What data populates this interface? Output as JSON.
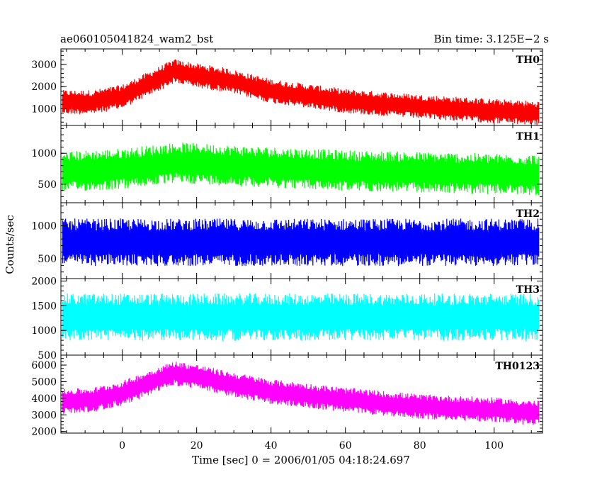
{
  "header": {
    "left_title": "ae060105041824_wam2_bst",
    "right_title": "Bin time: 3.125E−2 s"
  },
  "colors": {
    "TH0": "#ff0000",
    "TH1": "#00ff00",
    "TH2": "#0000ff",
    "TH3": "#00ffff",
    "TH0123": "#ff00ff"
  },
  "chart_data": {
    "type": "line",
    "xlabel": "Time [sec] 0 = 2006/01/05 04:18:24.697",
    "ylabel": "Counts/sec",
    "xlim": [
      -16.5,
      113
    ],
    "x_ticks": [
      0,
      20,
      40,
      60,
      80,
      100
    ],
    "x_tick_labels": [
      "0",
      "20",
      "40",
      "60",
      "80",
      "100"
    ],
    "bin_time_s": 0.03125,
    "panels": [
      {
        "name": "TH0",
        "ylim": [
          250,
          3700
        ],
        "y_ticks": [
          1000,
          2000,
          3000
        ],
        "y_tick_labels": [
          "1000",
          "2000",
          "3000"
        ],
        "trend": {
          "x": [
            -16,
            -8,
            0,
            8,
            14,
            20,
            28,
            40,
            60,
            80,
            100,
            112
          ],
          "y": [
            1300,
            1300,
            1550,
            2200,
            2700,
            2500,
            2300,
            1800,
            1350,
            1100,
            900,
            800
          ]
        },
        "noise": 550
      },
      {
        "name": "TH1",
        "ylim": [
          200,
          1450
        ],
        "y_ticks": [
          500,
          1000
        ],
        "y_tick_labels": [
          "500",
          "1000"
        ],
        "trend": {
          "x": [
            -16,
            0,
            15,
            30,
            60,
            90,
            112
          ],
          "y": [
            700,
            750,
            850,
            800,
            720,
            680,
            650
          ]
        },
        "noise": 330
      },
      {
        "name": "TH2",
        "ylim": [
          200,
          1350
        ],
        "y_ticks": [
          500,
          1000
        ],
        "y_tick_labels": [
          "500",
          "1000"
        ],
        "trend": {
          "x": [
            -16,
            112
          ],
          "y": [
            750,
            750
          ]
        },
        "noise": 360
      },
      {
        "name": "TH3",
        "ylim": [
          500,
          2050
        ],
        "y_ticks": [
          500,
          1000,
          1500,
          2000
        ],
        "y_tick_labels": [
          "500",
          "1000",
          "1500",
          "2000"
        ],
        "trend": {
          "x": [
            -16,
            112
          ],
          "y": [
            1270,
            1270
          ]
        },
        "noise": 480
      },
      {
        "name": "TH0123",
        "ylim": [
          1900,
          6600
        ],
        "y_ticks": [
          2000,
          3000,
          4000,
          5000,
          6000
        ],
        "y_tick_labels": [
          "2000",
          "3000",
          "4000",
          "5000",
          "6000"
        ],
        "trend": {
          "x": [
            -16,
            -8,
            0,
            8,
            14,
            20,
            28,
            40,
            60,
            80,
            100,
            112
          ],
          "y": [
            3800,
            3900,
            4300,
            5000,
            5500,
            5300,
            4900,
            4400,
            3900,
            3500,
            3300,
            3100
          ]
        },
        "noise": 750
      }
    ]
  }
}
